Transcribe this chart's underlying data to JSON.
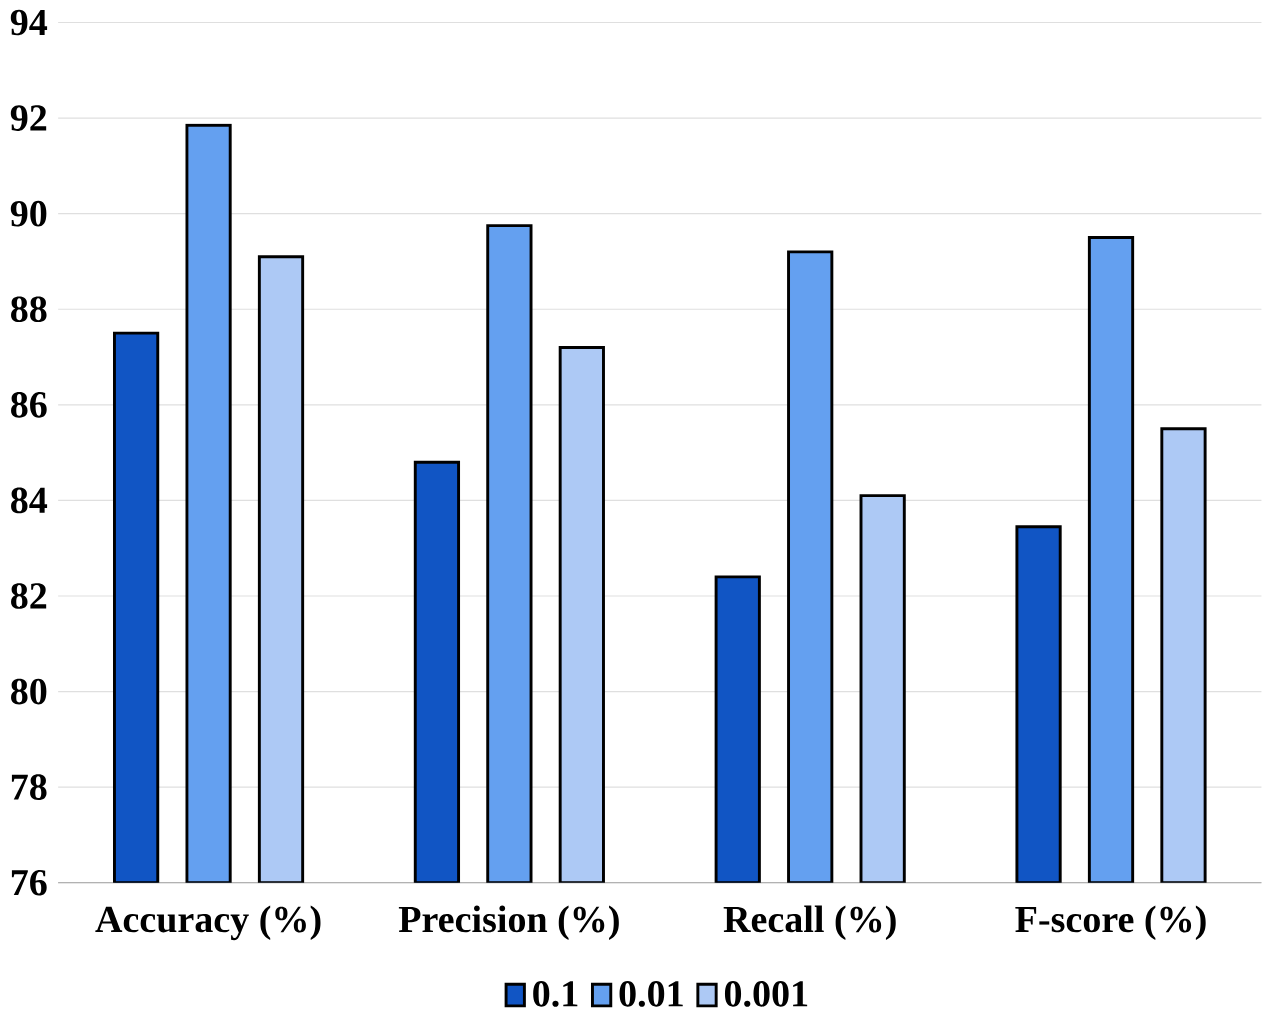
{
  "chart_data": {
    "type": "bar",
    "categories": [
      "Accuracy (%)",
      "Precision (%)",
      "Recall (%)",
      "F-score (%)"
    ],
    "series": [
      {
        "name": "0.1",
        "color": "#1155c4",
        "values": [
          87.5,
          84.8,
          82.4,
          83.45
        ]
      },
      {
        "name": "0.01",
        "color": "#64a0f0",
        "values": [
          91.85,
          89.75,
          89.2,
          89.5
        ]
      },
      {
        "name": "0.001",
        "color": "#adc9f5",
        "values": [
          89.1,
          87.2,
          84.1,
          85.5
        ]
      }
    ],
    "ylim": [
      76,
      94
    ],
    "yticks": [
      76,
      78,
      80,
      82,
      84,
      86,
      88,
      90,
      92,
      94
    ],
    "grid": "y",
    "legend": "bottom"
  }
}
